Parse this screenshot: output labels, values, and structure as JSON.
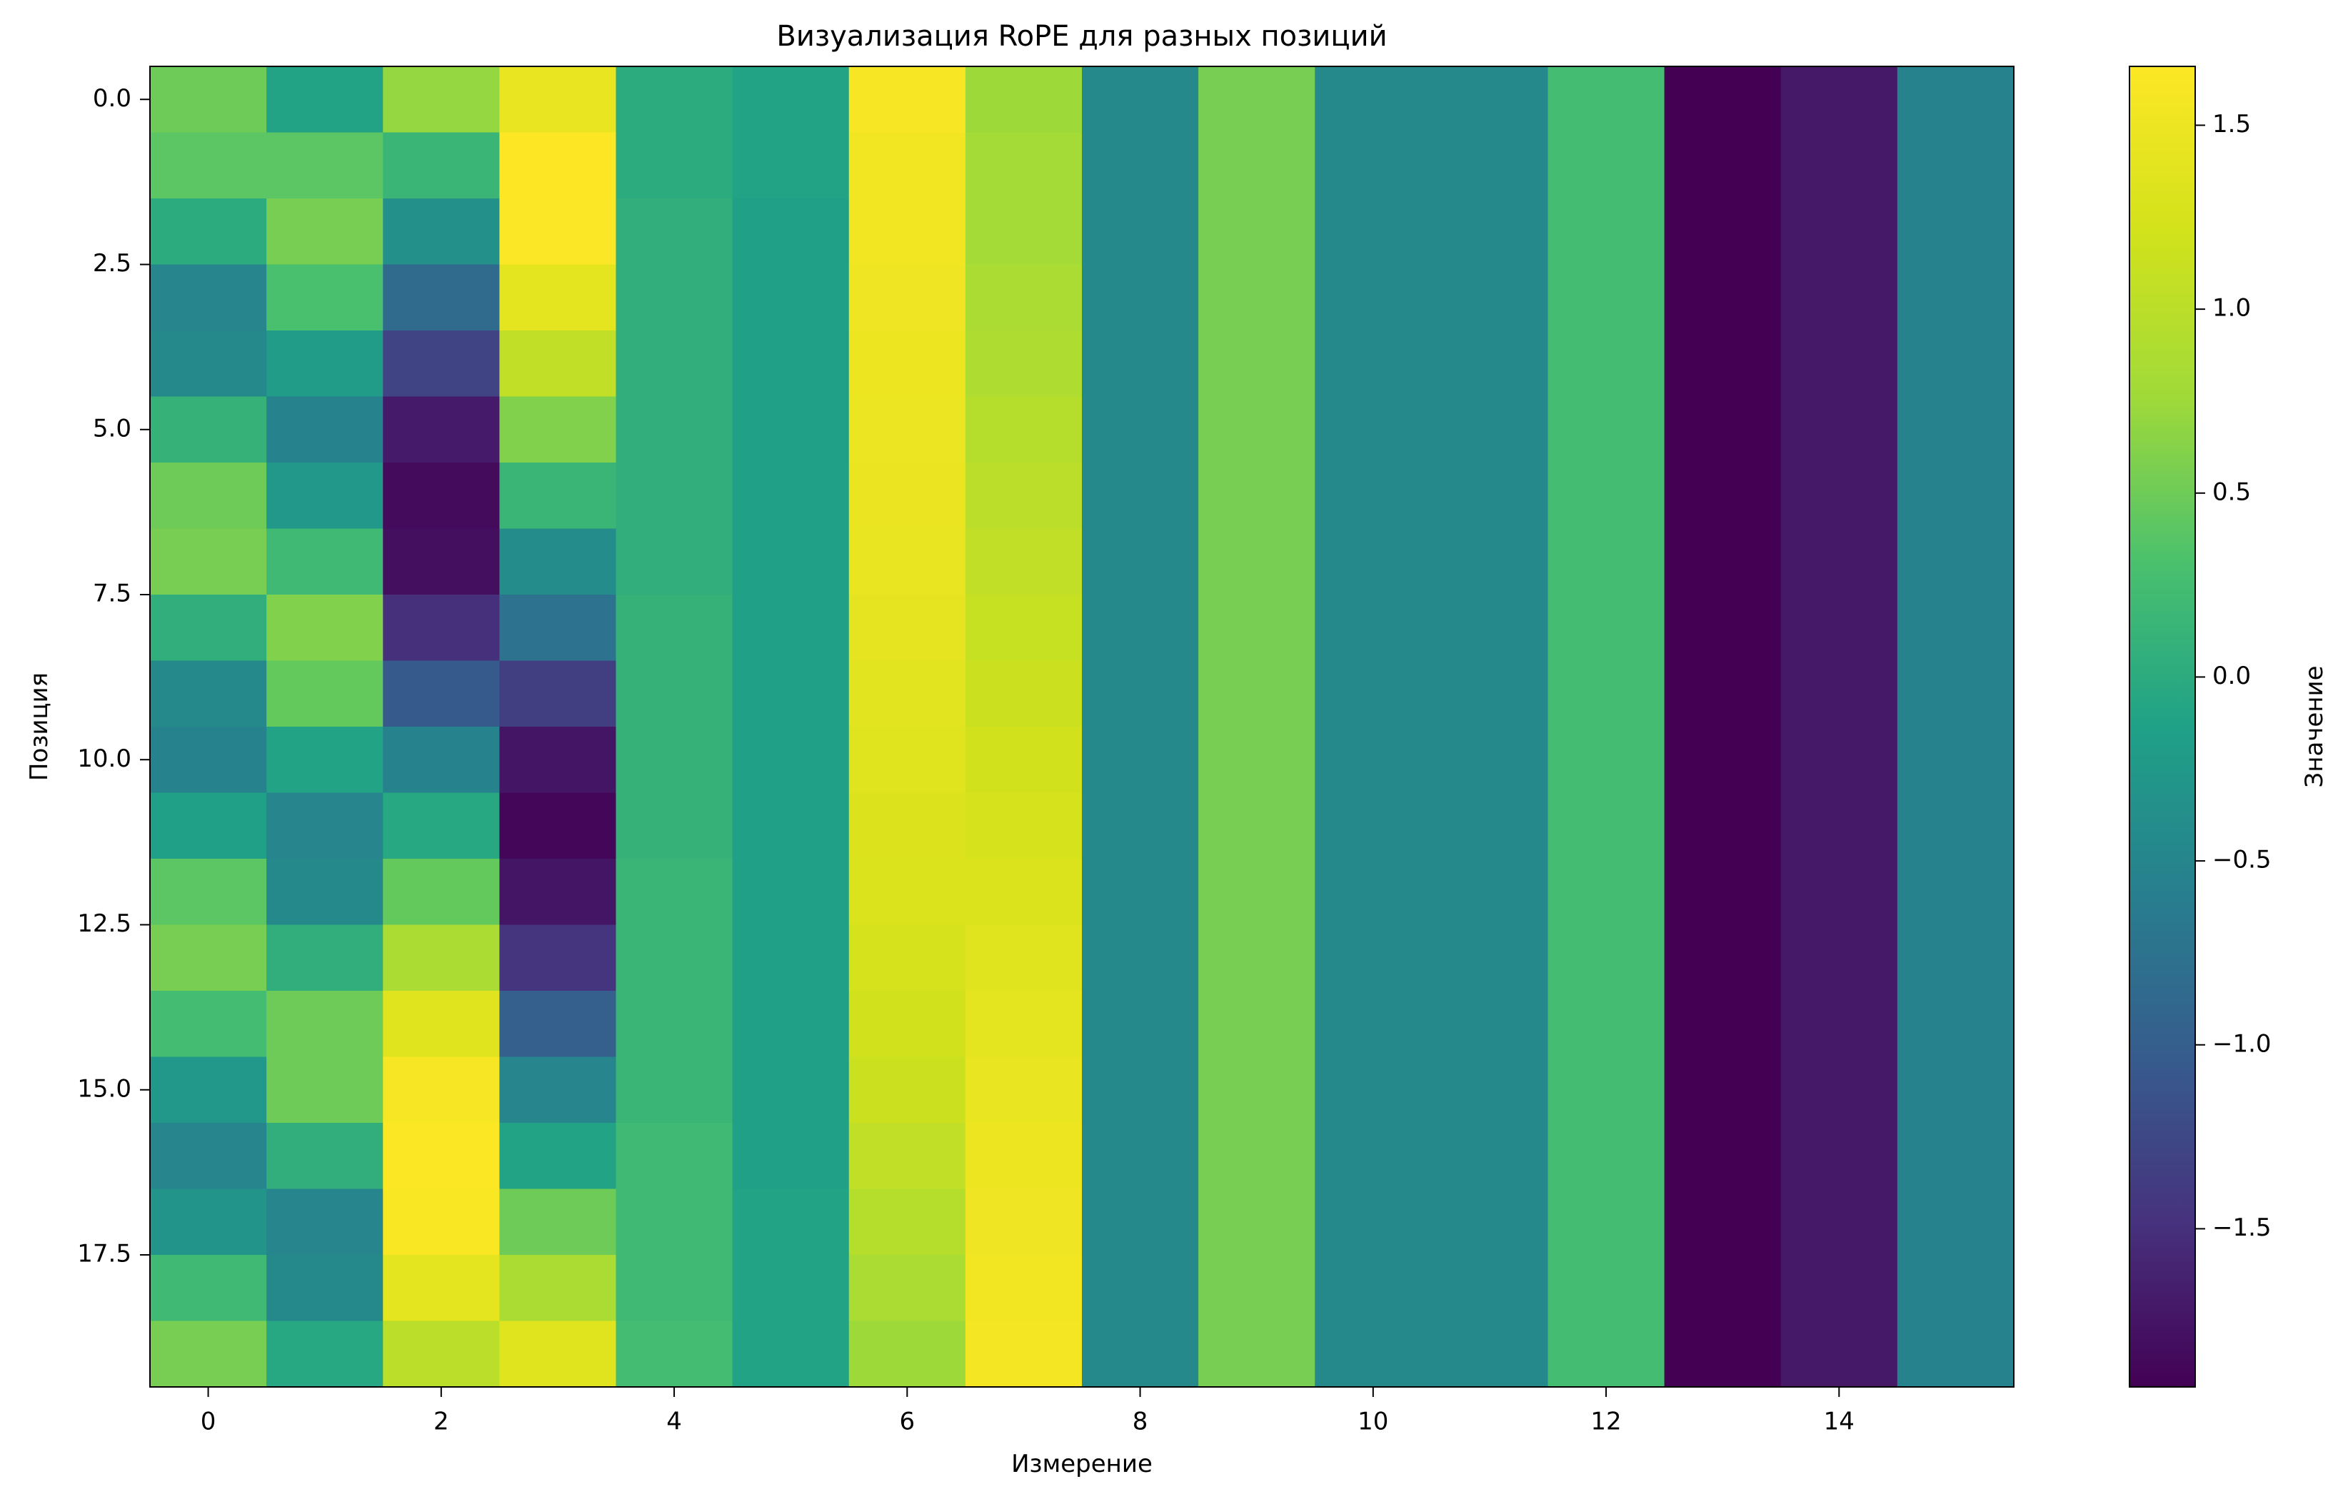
{
  "chart_data": {
    "type": "heatmap",
    "title": "Визуализация RoPE для разных позиций",
    "xlabel": "Измерение",
    "ylabel": "Позиция",
    "colorbar_label": "Значение",
    "colormap": "viridis",
    "vmin": -1.93,
    "vmax": 1.66,
    "x_ticks": [
      "0",
      "2",
      "4",
      "6",
      "8",
      "10",
      "12",
      "14"
    ],
    "x_tick_values": [
      0,
      2,
      4,
      6,
      8,
      10,
      12,
      14
    ],
    "y_ticks": [
      "0.0",
      "2.5",
      "5.0",
      "7.5",
      "10.0",
      "12.5",
      "15.0",
      "17.5"
    ],
    "y_tick_values": [
      0,
      2.5,
      5,
      7.5,
      10,
      12.5,
      15,
      17.5
    ],
    "colorbar_ticks": [
      "1.5",
      "1.0",
      "0.5",
      "0.0",
      "−0.5",
      "−1.0",
      "−1.5"
    ],
    "colorbar_tick_values": [
      1.5,
      1.0,
      0.5,
      0.0,
      -0.5,
      -1.0,
      -1.5
    ],
    "columns": [
      0,
      1,
      2,
      3,
      4,
      5,
      6,
      7,
      8,
      9,
      10,
      11,
      12,
      13,
      14,
      15
    ],
    "rows": [
      0,
      1,
      2,
      3,
      4,
      5,
      6,
      7,
      8,
      9,
      10,
      11,
      12,
      13,
      14,
      15,
      16,
      17,
      18,
      19
    ],
    "values": [
      [
        0.5,
        -0.1,
        0.7,
        1.45,
        0.0,
        -0.1,
        1.6,
        0.75,
        -0.45,
        0.55,
        -0.45,
        -0.45,
        0.25,
        -1.93,
        -1.72,
        -0.55
      ],
      [
        0.4,
        0.4,
        0.15,
        1.66,
        0.0,
        -0.1,
        1.55,
        0.8,
        -0.45,
        0.55,
        -0.45,
        -0.45,
        0.25,
        -1.93,
        -1.72,
        -0.55
      ],
      [
        0.0,
        0.55,
        -0.35,
        1.64,
        0.05,
        -0.15,
        1.55,
        0.8,
        -0.45,
        0.55,
        -0.45,
        -0.45,
        0.25,
        -1.93,
        -1.72,
        -0.55
      ],
      [
        -0.5,
        0.3,
        -0.85,
        1.4,
        0.05,
        -0.15,
        1.52,
        0.85,
        -0.45,
        0.55,
        -0.45,
        -0.45,
        0.25,
        -1.93,
        -1.72,
        -0.55
      ],
      [
        -0.45,
        -0.2,
        -1.3,
        1.05,
        0.05,
        -0.15,
        1.5,
        0.9,
        -0.45,
        0.55,
        -0.45,
        -0.45,
        0.25,
        -1.93,
        -1.72,
        -0.55
      ],
      [
        0.1,
        -0.55,
        -1.7,
        0.6,
        0.05,
        -0.15,
        1.48,
        0.95,
        -0.45,
        0.55,
        -0.45,
        -0.45,
        0.25,
        -1.93,
        -1.72,
        -0.55
      ],
      [
        0.5,
        -0.25,
        -1.85,
        0.15,
        0.05,
        -0.15,
        1.47,
        1.0,
        -0.45,
        0.55,
        -0.45,
        -0.45,
        0.25,
        -1.93,
        -1.72,
        -0.55
      ],
      [
        0.55,
        0.2,
        -1.8,
        -0.4,
        0.05,
        -0.15,
        1.45,
        1.05,
        -0.45,
        0.55,
        -0.45,
        -0.45,
        0.25,
        -1.93,
        -1.72,
        -0.55
      ],
      [
        0.05,
        0.6,
        -1.5,
        -0.75,
        0.1,
        -0.15,
        1.42,
        1.1,
        -0.45,
        0.55,
        -0.45,
        -0.45,
        0.25,
        -1.93,
        -1.72,
        -0.55
      ],
      [
        -0.45,
        0.45,
        -1.05,
        -1.35,
        0.1,
        -0.15,
        1.38,
        1.15,
        -0.45,
        0.55,
        -0.45,
        -0.45,
        0.25,
        -1.93,
        -1.72,
        -0.55
      ],
      [
        -0.55,
        -0.1,
        -0.55,
        -1.75,
        0.1,
        -0.15,
        1.35,
        1.2,
        -0.45,
        0.55,
        -0.45,
        -0.45,
        0.25,
        -1.93,
        -1.72,
        -0.55
      ],
      [
        -0.15,
        -0.5,
        -0.05,
        -1.88,
        0.1,
        -0.15,
        1.32,
        1.25,
        -0.45,
        0.55,
        -0.45,
        -0.45,
        0.25,
        -1.93,
        -1.72,
        -0.55
      ],
      [
        0.4,
        -0.45,
        0.45,
        -1.75,
        0.15,
        -0.15,
        1.3,
        1.3,
        -0.45,
        0.55,
        -0.45,
        -0.45,
        0.25,
        -1.93,
        -1.72,
        -0.55
      ],
      [
        0.55,
        0.05,
        0.85,
        -1.45,
        0.15,
        -0.15,
        1.25,
        1.35,
        -0.45,
        0.55,
        -0.45,
        -0.45,
        0.25,
        -1.93,
        -1.72,
        -0.55
      ],
      [
        0.25,
        0.5,
        1.35,
        -1.0,
        0.15,
        -0.15,
        1.2,
        1.4,
        -0.45,
        0.55,
        -0.45,
        -0.45,
        0.25,
        -1.93,
        -1.72,
        -0.55
      ],
      [
        -0.25,
        0.5,
        1.6,
        -0.5,
        0.15,
        -0.15,
        1.15,
        1.45,
        -0.45,
        0.55,
        -0.45,
        -0.45,
        0.25,
        -1.93,
        -1.72,
        -0.55
      ],
      [
        -0.5,
        0.05,
        1.65,
        -0.1,
        0.2,
        -0.15,
        1.05,
        1.5,
        -0.45,
        0.55,
        -0.45,
        -0.45,
        0.25,
        -1.93,
        -1.72,
        -0.55
      ],
      [
        -0.3,
        -0.5,
        1.62,
        0.5,
        0.2,
        -0.1,
        0.95,
        1.52,
        -0.45,
        0.55,
        -0.45,
        -0.45,
        0.25,
        -1.93,
        -1.72,
        -0.55
      ],
      [
        0.2,
        -0.45,
        1.4,
        0.85,
        0.2,
        -0.1,
        0.85,
        1.55,
        -0.45,
        0.55,
        -0.45,
        -0.45,
        0.25,
        -1.93,
        -1.72,
        -0.55
      ],
      [
        0.55,
        -0.05,
        1.0,
        1.35,
        0.25,
        -0.1,
        0.75,
        1.57,
        -0.45,
        0.55,
        -0.45,
        -0.45,
        0.25,
        -1.93,
        -1.72,
        -0.55
      ]
    ]
  }
}
